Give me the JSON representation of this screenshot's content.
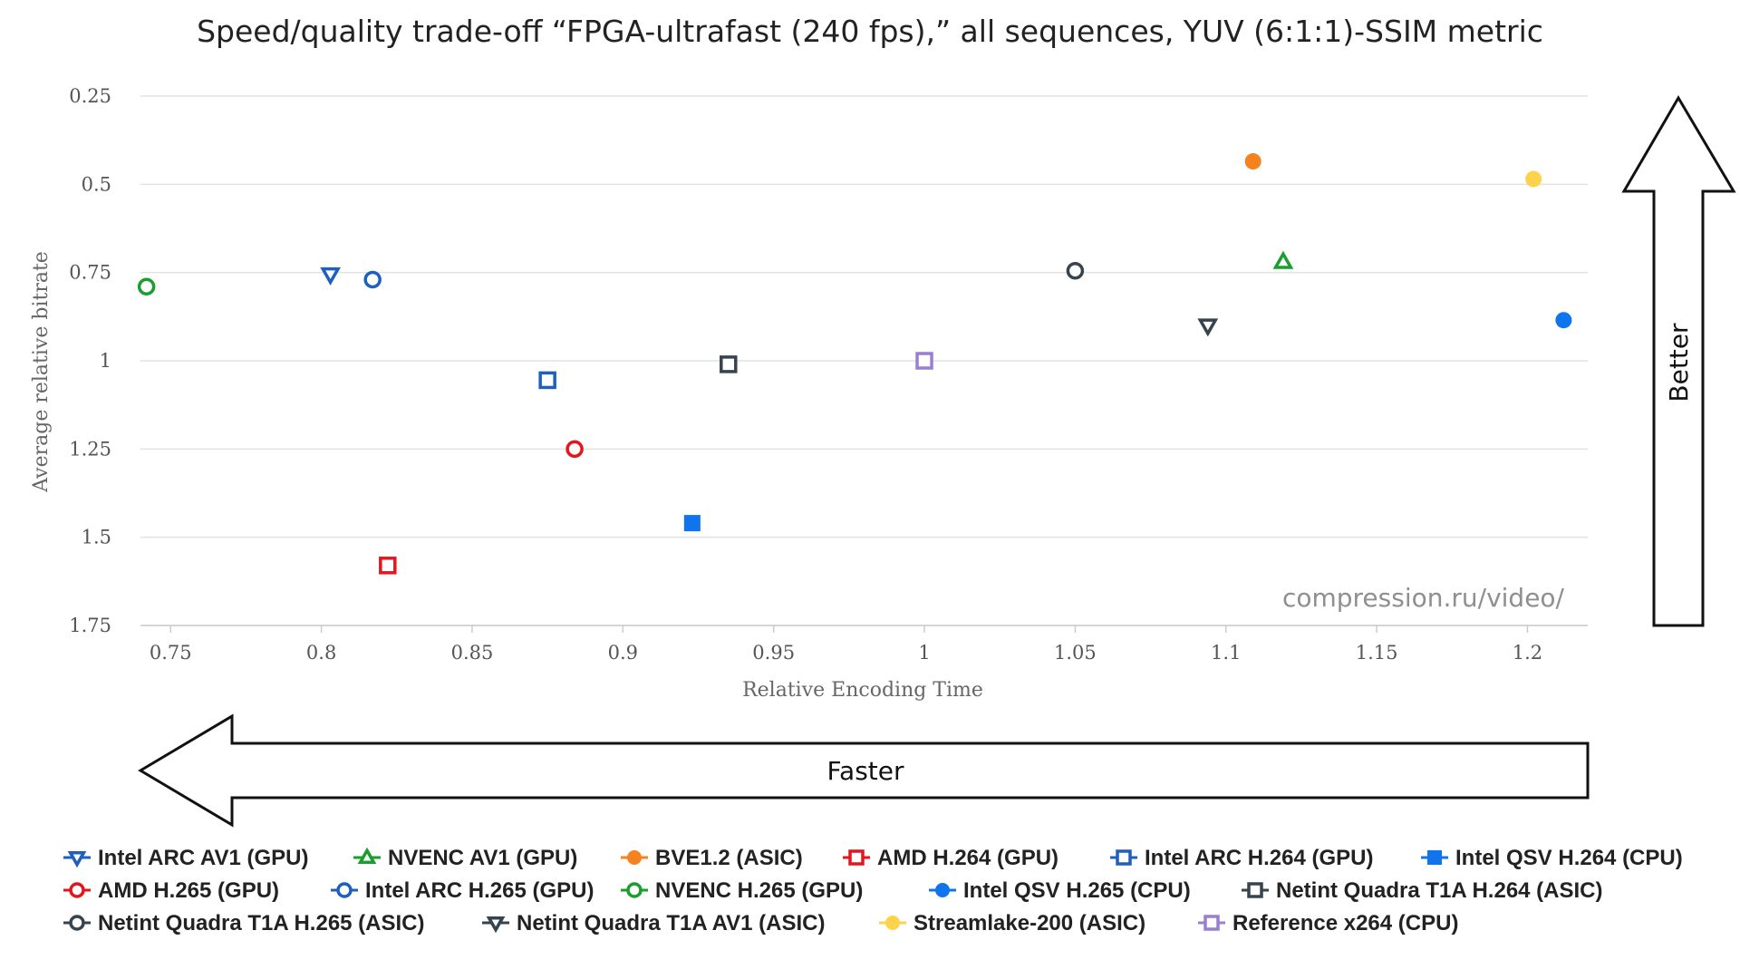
{
  "chart_data": {
    "type": "scatter",
    "title": "Speed/quality trade-off “FPGA-ultrafast (240 fps),” all sequences, YUV (6:1:1)-SSIM metric",
    "xlabel": "Relative Encoding Time",
    "ylabel": "Average relative bitrate",
    "xlim": [
      0.74,
      1.22
    ],
    "ylim": [
      1.75,
      0.25
    ],
    "y_inverted": true,
    "x_ticks": [
      "0.75",
      "0.8",
      "0.85",
      "0.9",
      "0.95",
      "1",
      "1.05",
      "1.1",
      "1.15",
      "1.2"
    ],
    "y_ticks": [
      "0.25",
      "0.5",
      "0.75",
      "1",
      "1.25",
      "1.5",
      "1.75"
    ],
    "grid": true,
    "legend_position": "bottom",
    "annotations": {
      "watermark": "compression.ru/video/",
      "better_arrow": "Better",
      "faster_arrow": "Faster"
    },
    "series": [
      {
        "name": "Intel ARC AV1 (GPU)",
        "marker": "triangle-down",
        "filled": false,
        "color": "#1f5fbf",
        "x": 0.803,
        "y": 0.755
      },
      {
        "name": "NVENC AV1 (GPU)",
        "marker": "triangle-up",
        "filled": false,
        "color": "#1a9e2e",
        "x": 1.119,
        "y": 0.72
      },
      {
        "name": "BVE1.2 (ASIC)",
        "marker": "circle",
        "filled": true,
        "color": "#f5821f",
        "x": 1.109,
        "y": 0.435
      },
      {
        "name": "AMD H.264 (GPU)",
        "marker": "square",
        "filled": false,
        "color": "#e3161d",
        "x": 0.822,
        "y": 1.58
      },
      {
        "name": "Intel ARC H.264 (GPU)",
        "marker": "square",
        "filled": false,
        "color": "#1f5fbf",
        "x": 0.875,
        "y": 1.055
      },
      {
        "name": "Intel QSV H.264 (CPU)",
        "marker": "square",
        "filled": true,
        "color": "#0f74ee",
        "x": 0.923,
        "y": 1.46
      },
      {
        "name": "AMD H.265 (GPU)",
        "marker": "circle",
        "filled": false,
        "color": "#e3161d",
        "x": 0.884,
        "y": 1.25
      },
      {
        "name": "Intel ARC H.265 (GPU)",
        "marker": "circle",
        "filled": false,
        "color": "#1f5fbf",
        "x": 0.817,
        "y": 0.77
      },
      {
        "name": "NVENC H.265 (GPU)",
        "marker": "circle",
        "filled": false,
        "color": "#1a9e2e",
        "x": 0.742,
        "y": 0.79
      },
      {
        "name": "Intel QSV H.265 (CPU)",
        "marker": "circle",
        "filled": true,
        "color": "#0f74ee",
        "x": 1.212,
        "y": 0.885
      },
      {
        "name": "Netint Quadra T1A H.264 (ASIC)",
        "marker": "square",
        "filled": false,
        "color": "#35444f",
        "x": 0.935,
        "y": 1.01
      },
      {
        "name": "Netint Quadra T1A H.265 (ASIC)",
        "marker": "circle",
        "filled": false,
        "color": "#35444f",
        "x": 1.05,
        "y": 0.745
      },
      {
        "name": "Netint Quadra T1A AV1 (ASIC)",
        "marker": "triangle-down",
        "filled": false,
        "color": "#35444f",
        "x": 1.094,
        "y": 0.9
      },
      {
        "name": "Streamlake-200 (ASIC)",
        "marker": "circle",
        "filled": true,
        "color": "#fcd34a",
        "x": 1.202,
        "y": 0.485
      },
      {
        "name": "Reference x264 (CPU)",
        "marker": "square",
        "filled": false,
        "color": "#9a7fd1",
        "x": 1.0,
        "y": 1.0
      }
    ]
  }
}
